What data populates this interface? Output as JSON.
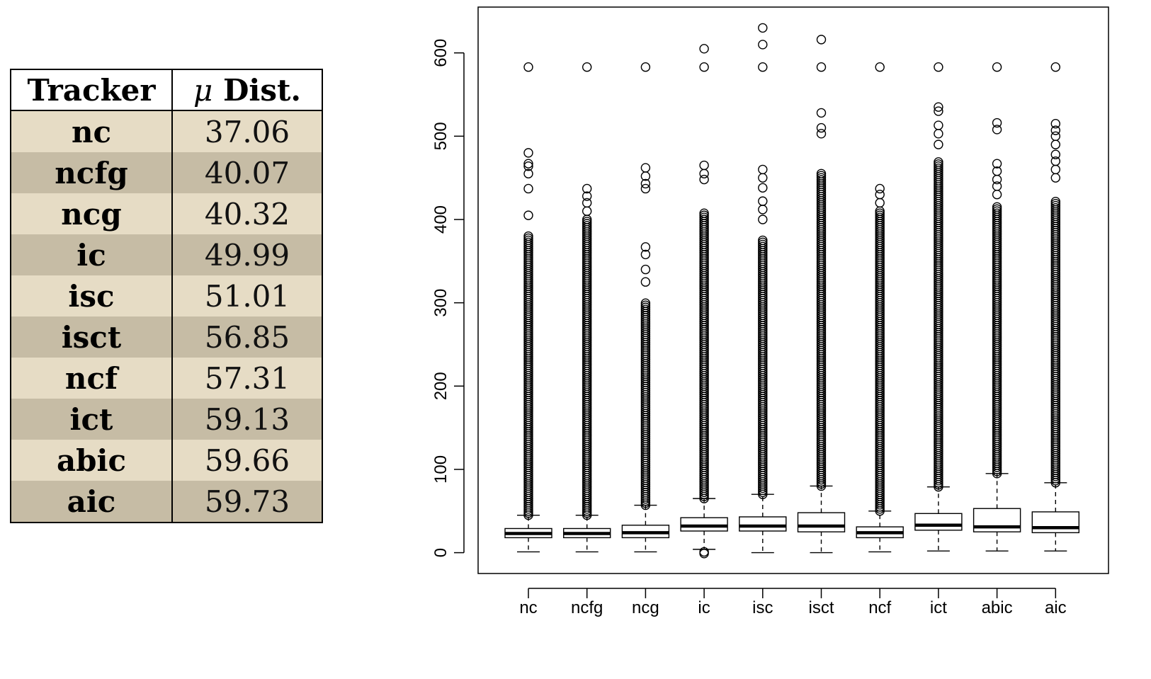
{
  "table": {
    "header": {
      "tracker": "Tracker",
      "mu": "μ",
      "dist": "Dist."
    },
    "rows": [
      {
        "tracker": "nc",
        "dist": "37.06"
      },
      {
        "tracker": "ncfg",
        "dist": "40.07"
      },
      {
        "tracker": "ncg",
        "dist": "40.32"
      },
      {
        "tracker": "ic",
        "dist": "49.99"
      },
      {
        "tracker": "isc",
        "dist": "51.01"
      },
      {
        "tracker": "isct",
        "dist": "56.85"
      },
      {
        "tracker": "ncf",
        "dist": "57.31"
      },
      {
        "tracker": "ict",
        "dist": "59.13"
      },
      {
        "tracker": "abic",
        "dist": "59.66"
      },
      {
        "tracker": "aic",
        "dist": "59.73"
      }
    ]
  },
  "chart_data": {
    "type": "boxplot",
    "title": "",
    "xlabel": "",
    "ylabel": "",
    "ylim": [
      -25,
      655
    ],
    "yticks": [
      0,
      100,
      200,
      300,
      400,
      500,
      600
    ],
    "categories": [
      "nc",
      "ncfg",
      "ncg",
      "ic",
      "isc",
      "isct",
      "ncf",
      "ict",
      "abic",
      "aic"
    ],
    "boxes": [
      {
        "name": "nc",
        "whisker_low": 1,
        "q1": 18,
        "median": 23,
        "q3": 29,
        "whisker_high": 45,
        "outlier_range": [
          45,
          380
        ],
        "outliers_top": [
          405,
          437,
          455,
          464,
          467,
          480,
          583
        ]
      },
      {
        "name": "ncfg",
        "whisker_low": 1,
        "q1": 18,
        "median": 23,
        "q3": 29,
        "whisker_high": 45,
        "outlier_range": [
          45,
          400
        ],
        "outliers_top": [
          410,
          420,
          428,
          437,
          583
        ]
      },
      {
        "name": "ncg",
        "whisker_low": 1,
        "q1": 18,
        "median": 24,
        "q3": 33,
        "whisker_high": 57,
        "outlier_range": [
          57,
          300
        ],
        "outliers_top": [
          325,
          340,
          358,
          367,
          437,
          443,
          452,
          462,
          583
        ]
      },
      {
        "name": "ic",
        "whisker_low": 4,
        "q1": 26,
        "median": 32,
        "q3": 42,
        "whisker_high": 65,
        "outlier_range": [
          65,
          408
        ],
        "outliers_top": [
          448,
          455,
          465,
          583,
          605
        ],
        "outliers_bottom": [
          -1,
          1
        ]
      },
      {
        "name": "isc",
        "whisker_low": 0,
        "q1": 26,
        "median": 32,
        "q3": 43,
        "whisker_high": 70,
        "outlier_range": [
          70,
          375
        ],
        "outliers_top": [
          400,
          412,
          422,
          438,
          450,
          460,
          583,
          610,
          630
        ]
      },
      {
        "name": "isct",
        "whisker_low": 0,
        "q1": 25,
        "median": 32,
        "q3": 48,
        "whisker_high": 80,
        "outlier_range": [
          80,
          455
        ],
        "outliers_top": [
          503,
          510,
          528,
          583,
          616
        ]
      },
      {
        "name": "ncf",
        "whisker_low": 1,
        "q1": 18,
        "median": 24,
        "q3": 31,
        "whisker_high": 50,
        "outlier_range": [
          50,
          410
        ],
        "outliers_top": [
          420,
          430,
          437,
          583
        ]
      },
      {
        "name": "ict",
        "whisker_low": 2,
        "q1": 27,
        "median": 33,
        "q3": 47,
        "whisker_high": 79,
        "outlier_range": [
          79,
          470
        ],
        "outliers_top": [
          490,
          503,
          513,
          530,
          535,
          583
        ]
      },
      {
        "name": "abic",
        "whisker_low": 2,
        "q1": 25,
        "median": 31,
        "q3": 53,
        "whisker_high": 95,
        "outlier_range": [
          95,
          415
        ],
        "outliers_top": [
          430,
          440,
          448,
          458,
          467,
          508,
          516,
          583
        ]
      },
      {
        "name": "aic",
        "whisker_low": 2,
        "q1": 24,
        "median": 30,
        "q3": 49,
        "whisker_high": 84,
        "outlier_range": [
          84,
          423
        ],
        "outliers_top": [
          450,
          460,
          470,
          478,
          490,
          500,
          507,
          515,
          583
        ]
      }
    ]
  }
}
